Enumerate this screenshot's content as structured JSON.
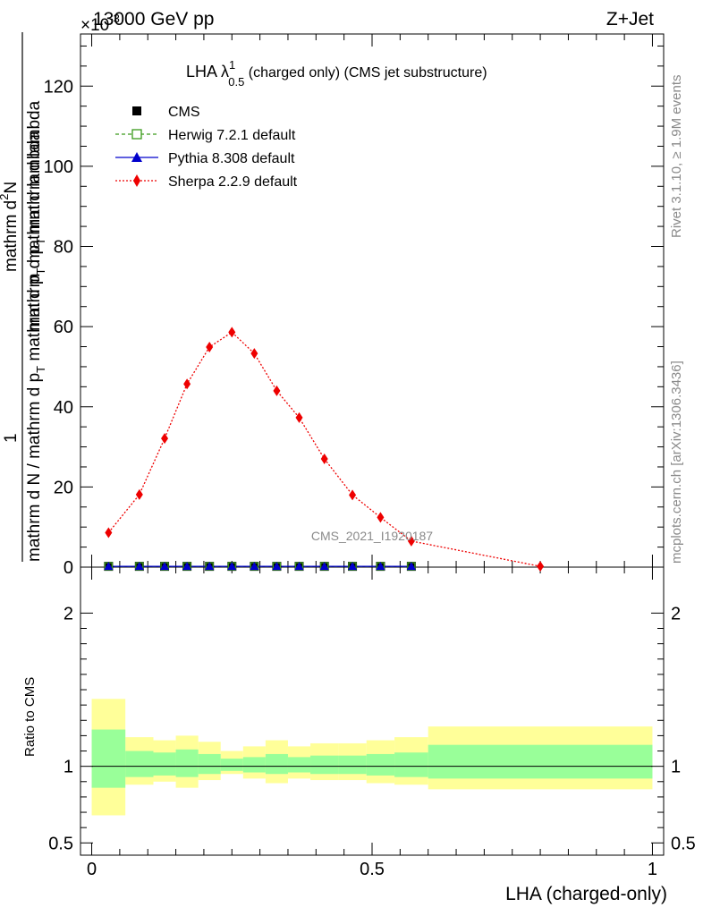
{
  "header": {
    "beam": "13000 GeV pp",
    "process": "Z+Jet",
    "multiplier": "×10",
    "multiplier_exp": "-3"
  },
  "side_labels": {
    "rivet": "Rivet 3.1.10, ≥ 1.9M events",
    "mcplots": "mcplots.cern.ch [arXiv:1306.3436]"
  },
  "title_parts": {
    "main": "LHA λ",
    "sup": "1",
    "sub": "0.5",
    "rest": " (charged only) (CMS jet substructure)"
  },
  "ylabel_parts": {
    "num_top": "mathrm d",
    "num_top_sup": "2",
    "num_top_rest": "N",
    "num_bottom": "mathrm d p",
    "num_bottom_sub": "T",
    "num_bottom_rest": " mathrm d lambda",
    "one": "1",
    "den_a": "mathrm d N / mathrm d p",
    "den_sub": "T",
    "den_b": " mathrm d p",
    "den_sub2": "T",
    "den_c": " mathrm d lambda"
  },
  "watermark": "CMS_2021_I1920187",
  "ratio_ylabel": "Ratio to CMS",
  "xlabel": "LHA (charged-only)",
  "colors": {
    "cms": "#000000",
    "herwig": "#3a9a1a",
    "pythia": "#0000cc",
    "sherpa": "#ee0000",
    "band_inner": "#99ff99",
    "band_outer": "#ffff99"
  },
  "chart_data": {
    "type": "line",
    "xlim": [
      -0.02,
      1.02
    ],
    "ylim_main": [
      0,
      133
    ],
    "ylim_ratio": [
      0.42,
      2.3
    ],
    "main_yticks": [
      0,
      20,
      40,
      60,
      80,
      100,
      120
    ],
    "ratio_yticks": [
      0.5,
      1,
      2
    ],
    "xticks": [
      0,
      0.5,
      1
    ],
    "xtick_labels": [
      "0",
      "0.5",
      "1"
    ],
    "main_ytick_labels": [
      "0",
      "20",
      "40",
      "60",
      "80",
      "100",
      "120"
    ],
    "ratio_ytick_labels": [
      "0.5",
      "1",
      "2"
    ],
    "ratio_ytick_labels_right": [
      "0.5",
      "1",
      "2"
    ],
    "bin_edges": [
      0,
      0.06,
      0.11,
      0.15,
      0.19,
      0.23,
      0.27,
      0.31,
      0.35,
      0.39,
      0.44,
      0.49,
      0.54,
      0.6,
      1.0
    ],
    "x_centers": [
      0.03,
      0.085,
      0.13,
      0.17,
      0.21,
      0.25,
      0.29,
      0.33,
      0.37,
      0.415,
      0.465,
      0.515,
      0.57,
      0.8
    ],
    "series": [
      {
        "name": "CMS",
        "style": "square",
        "values": [
          0.2,
          0.2,
          0.2,
          0.2,
          0.2,
          0.2,
          0.2,
          0.2,
          0.2,
          0.2,
          0.2,
          0.2,
          0.2,
          null
        ]
      },
      {
        "name": "Herwig 7.2.1 default",
        "style": "open-square-dashed",
        "values": [
          0.2,
          0.2,
          0.2,
          0.2,
          0.2,
          0.2,
          0.2,
          0.2,
          0.2,
          0.2,
          0.2,
          0.2,
          0.2,
          null
        ]
      },
      {
        "name": "Pythia 8.308 default",
        "style": "triangle-solid",
        "values": [
          0.2,
          0.2,
          0.2,
          0.2,
          0.2,
          0.2,
          0.2,
          0.2,
          0.2,
          0.2,
          0.2,
          0.2,
          0.2,
          null
        ]
      },
      {
        "name": "Sherpa 2.2.9 default",
        "style": "diamond-dotted",
        "values": [
          8.6,
          18.1,
          32.1,
          45.7,
          54.9,
          58.6,
          53.3,
          44.0,
          37.3,
          27.0,
          18.0,
          12.4,
          6.5,
          0.2
        ]
      }
    ],
    "ratio_bands": {
      "inner_low": [
        0.86,
        0.93,
        0.94,
        0.93,
        0.95,
        0.97,
        0.96,
        0.95,
        0.96,
        0.95,
        0.95,
        0.94,
        0.93,
        0.92
      ],
      "inner_high": [
        1.24,
        1.1,
        1.09,
        1.11,
        1.08,
        1.05,
        1.06,
        1.08,
        1.06,
        1.07,
        1.07,
        1.08,
        1.09,
        1.14
      ],
      "outer_low": [
        0.68,
        0.88,
        0.9,
        0.86,
        0.91,
        0.95,
        0.92,
        0.89,
        0.92,
        0.91,
        0.91,
        0.89,
        0.88,
        0.85
      ],
      "outer_high": [
        1.44,
        1.19,
        1.17,
        1.2,
        1.16,
        1.1,
        1.13,
        1.17,
        1.13,
        1.15,
        1.15,
        1.17,
        1.19,
        1.26
      ]
    },
    "legend_position": "top-left"
  }
}
